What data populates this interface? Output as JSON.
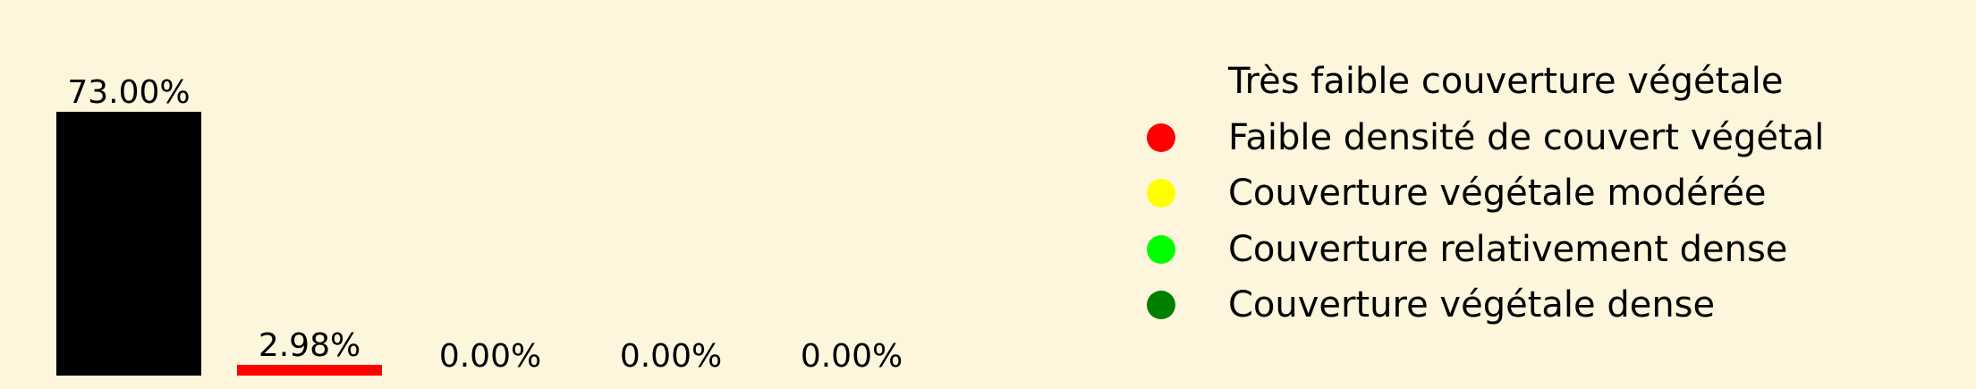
{
  "chart_data": {
    "type": "bar",
    "categories": [
      "Très faible couverture végétale",
      "Faible densité de couvert végétal",
      "Couverture végétale modérée",
      "Couverture relativement dense",
      "Couverture végétale dense"
    ],
    "values": [
      73.0,
      2.98,
      0.0,
      0.0,
      0.0
    ],
    "value_labels": [
      "73.00%",
      "2.98%",
      "0.00%",
      "0.00%",
      "0.00%"
    ],
    "colors": [
      "#000000",
      "#ff0000",
      "#ffff00",
      "#00ff00",
      "#008000"
    ],
    "ylim": [
      0,
      73.0
    ],
    "grid": false,
    "legend_position": "top-right",
    "title": "",
    "xlabel": "",
    "ylabel": ""
  },
  "legend": {
    "items": [
      {
        "label": "Très faible couverture végétale",
        "color": "#fdf6dc"
      },
      {
        "label": "Faible densité de couvert végétal",
        "color": "#ff0000"
      },
      {
        "label": "Couverture végétale modérée",
        "color": "#ffff00"
      },
      {
        "label": "Couverture relativement dense",
        "color": "#00ff00"
      },
      {
        "label": "Couverture végétale dense",
        "color": "#008000"
      }
    ]
  }
}
